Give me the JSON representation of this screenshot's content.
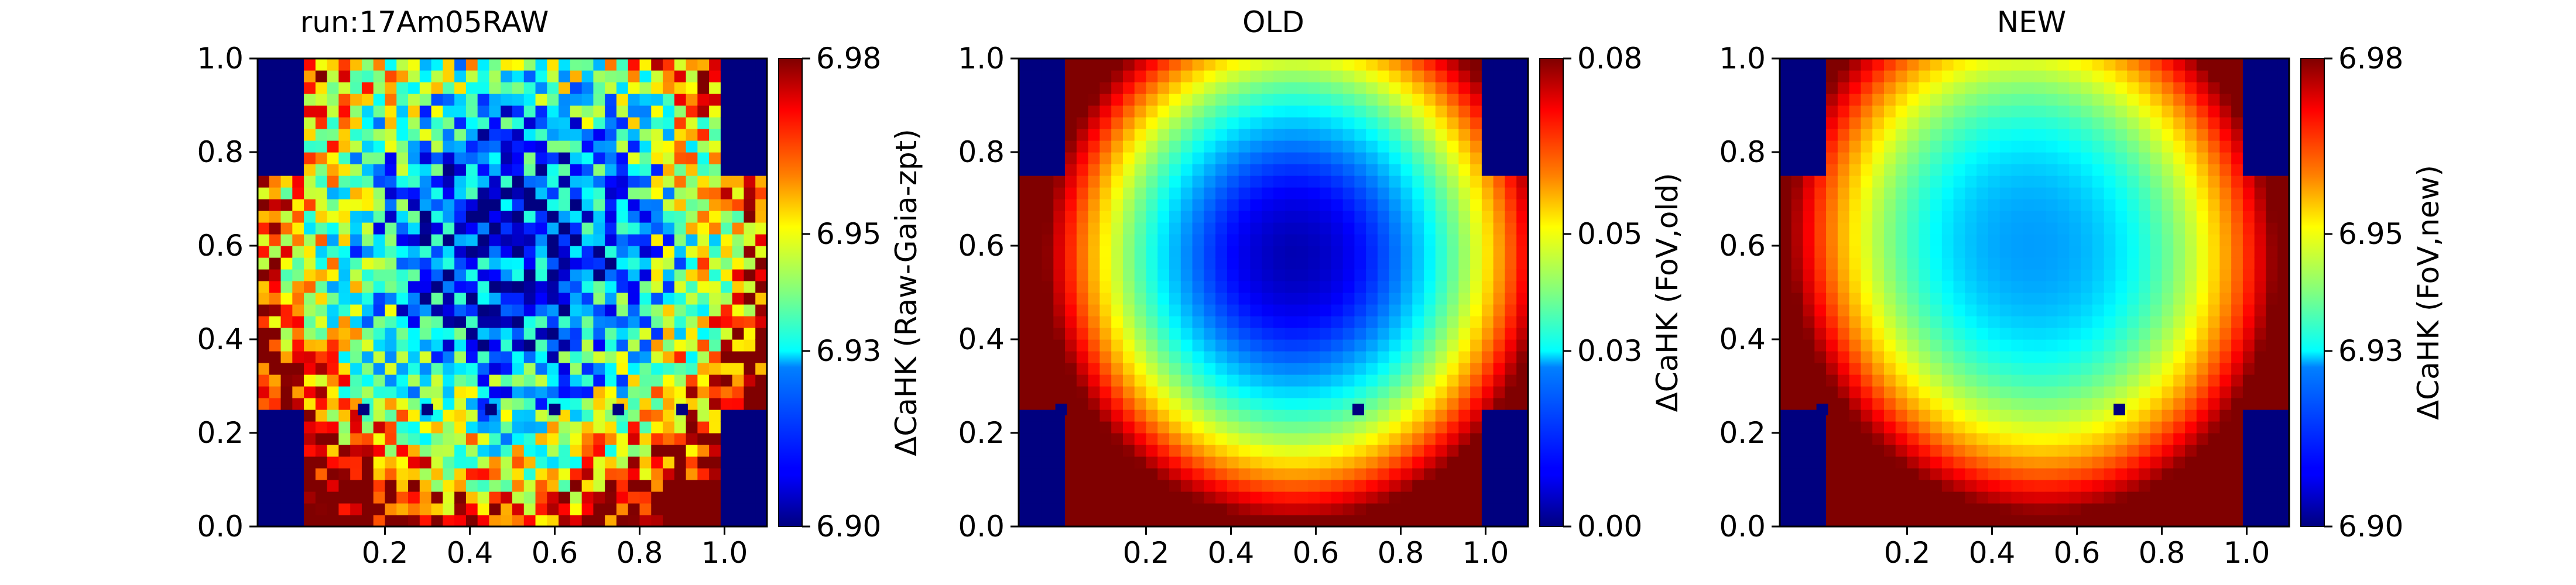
{
  "figure": {
    "colormap": "jet",
    "mask_color": "#00007f"
  },
  "chart_data": [
    {
      "type": "heatmap",
      "title": "run:17Am05RAW",
      "xticks": [
        "0.2",
        "0.4",
        "0.6",
        "0.8",
        "1.0"
      ],
      "yticks": [
        "0.0",
        "0.2",
        "0.4",
        "0.6",
        "0.8",
        "1.0"
      ],
      "xlim": [
        -0.1,
        1.1
      ],
      "ylim": [
        0.0,
        1.0
      ],
      "colorbar": {
        "label": "ΔCaHK (Raw-Gaia-zpt)",
        "ticks": [
          "6.90",
          "6.93",
          "6.95",
          "6.98"
        ],
        "range": [
          6.9,
          6.98
        ]
      },
      "pattern": "noisy-radial",
      "center": [
        0.5,
        0.6
      ],
      "grid": [
        44,
        40
      ],
      "mask": "corners",
      "defects": [
        [
          0.15,
          0.25
        ],
        [
          0.3,
          0.25
        ],
        [
          0.45,
          0.25
        ],
        [
          0.6,
          0.25
        ],
        [
          0.75,
          0.25
        ],
        [
          0.9,
          0.25
        ]
      ]
    },
    {
      "type": "heatmap",
      "title": "OLD",
      "xticks": [
        "0.2",
        "0.4",
        "0.6",
        "0.8",
        "1.0"
      ],
      "yticks": [
        "0.0",
        "0.2",
        "0.4",
        "0.6",
        "0.8",
        "1.0"
      ],
      "xlim": [
        -0.1,
        1.1
      ],
      "ylim": [
        0.0,
        1.0
      ],
      "colorbar": {
        "label": "ΔCaHK (FoV,old)",
        "ticks": [
          "0.00",
          "0.03",
          "0.05",
          "0.08"
        ],
        "range": [
          0.0,
          0.08
        ]
      },
      "pattern": "smooth-radial",
      "center": [
        0.55,
        0.58
      ],
      "grid": [
        44,
        40
      ],
      "mask": "corners",
      "defects": [
        [
          0.7,
          0.25
        ],
        [
          0.0,
          0.25
        ]
      ]
    },
    {
      "type": "heatmap",
      "title": "NEW",
      "xticks": [
        "0.2",
        "0.4",
        "0.6",
        "0.8",
        "1.0"
      ],
      "yticks": [
        "0.0",
        "0.2",
        "0.4",
        "0.6",
        "0.8",
        "1.0"
      ],
      "xlim": [
        -0.1,
        1.1
      ],
      "ylim": [
        0.0,
        1.0
      ],
      "colorbar": {
        "label": "ΔCaHK (FoV,new)",
        "ticks": [
          "6.90",
          "6.93",
          "6.95",
          "6.98"
        ],
        "range": [
          6.9,
          6.98
        ]
      },
      "pattern": "smooth-radial-shifted",
      "center": [
        0.5,
        0.6
      ],
      "grid": [
        44,
        40
      ],
      "mask": "corners",
      "defects": [
        [
          0.7,
          0.25
        ],
        [
          0.0,
          0.25
        ]
      ]
    }
  ]
}
